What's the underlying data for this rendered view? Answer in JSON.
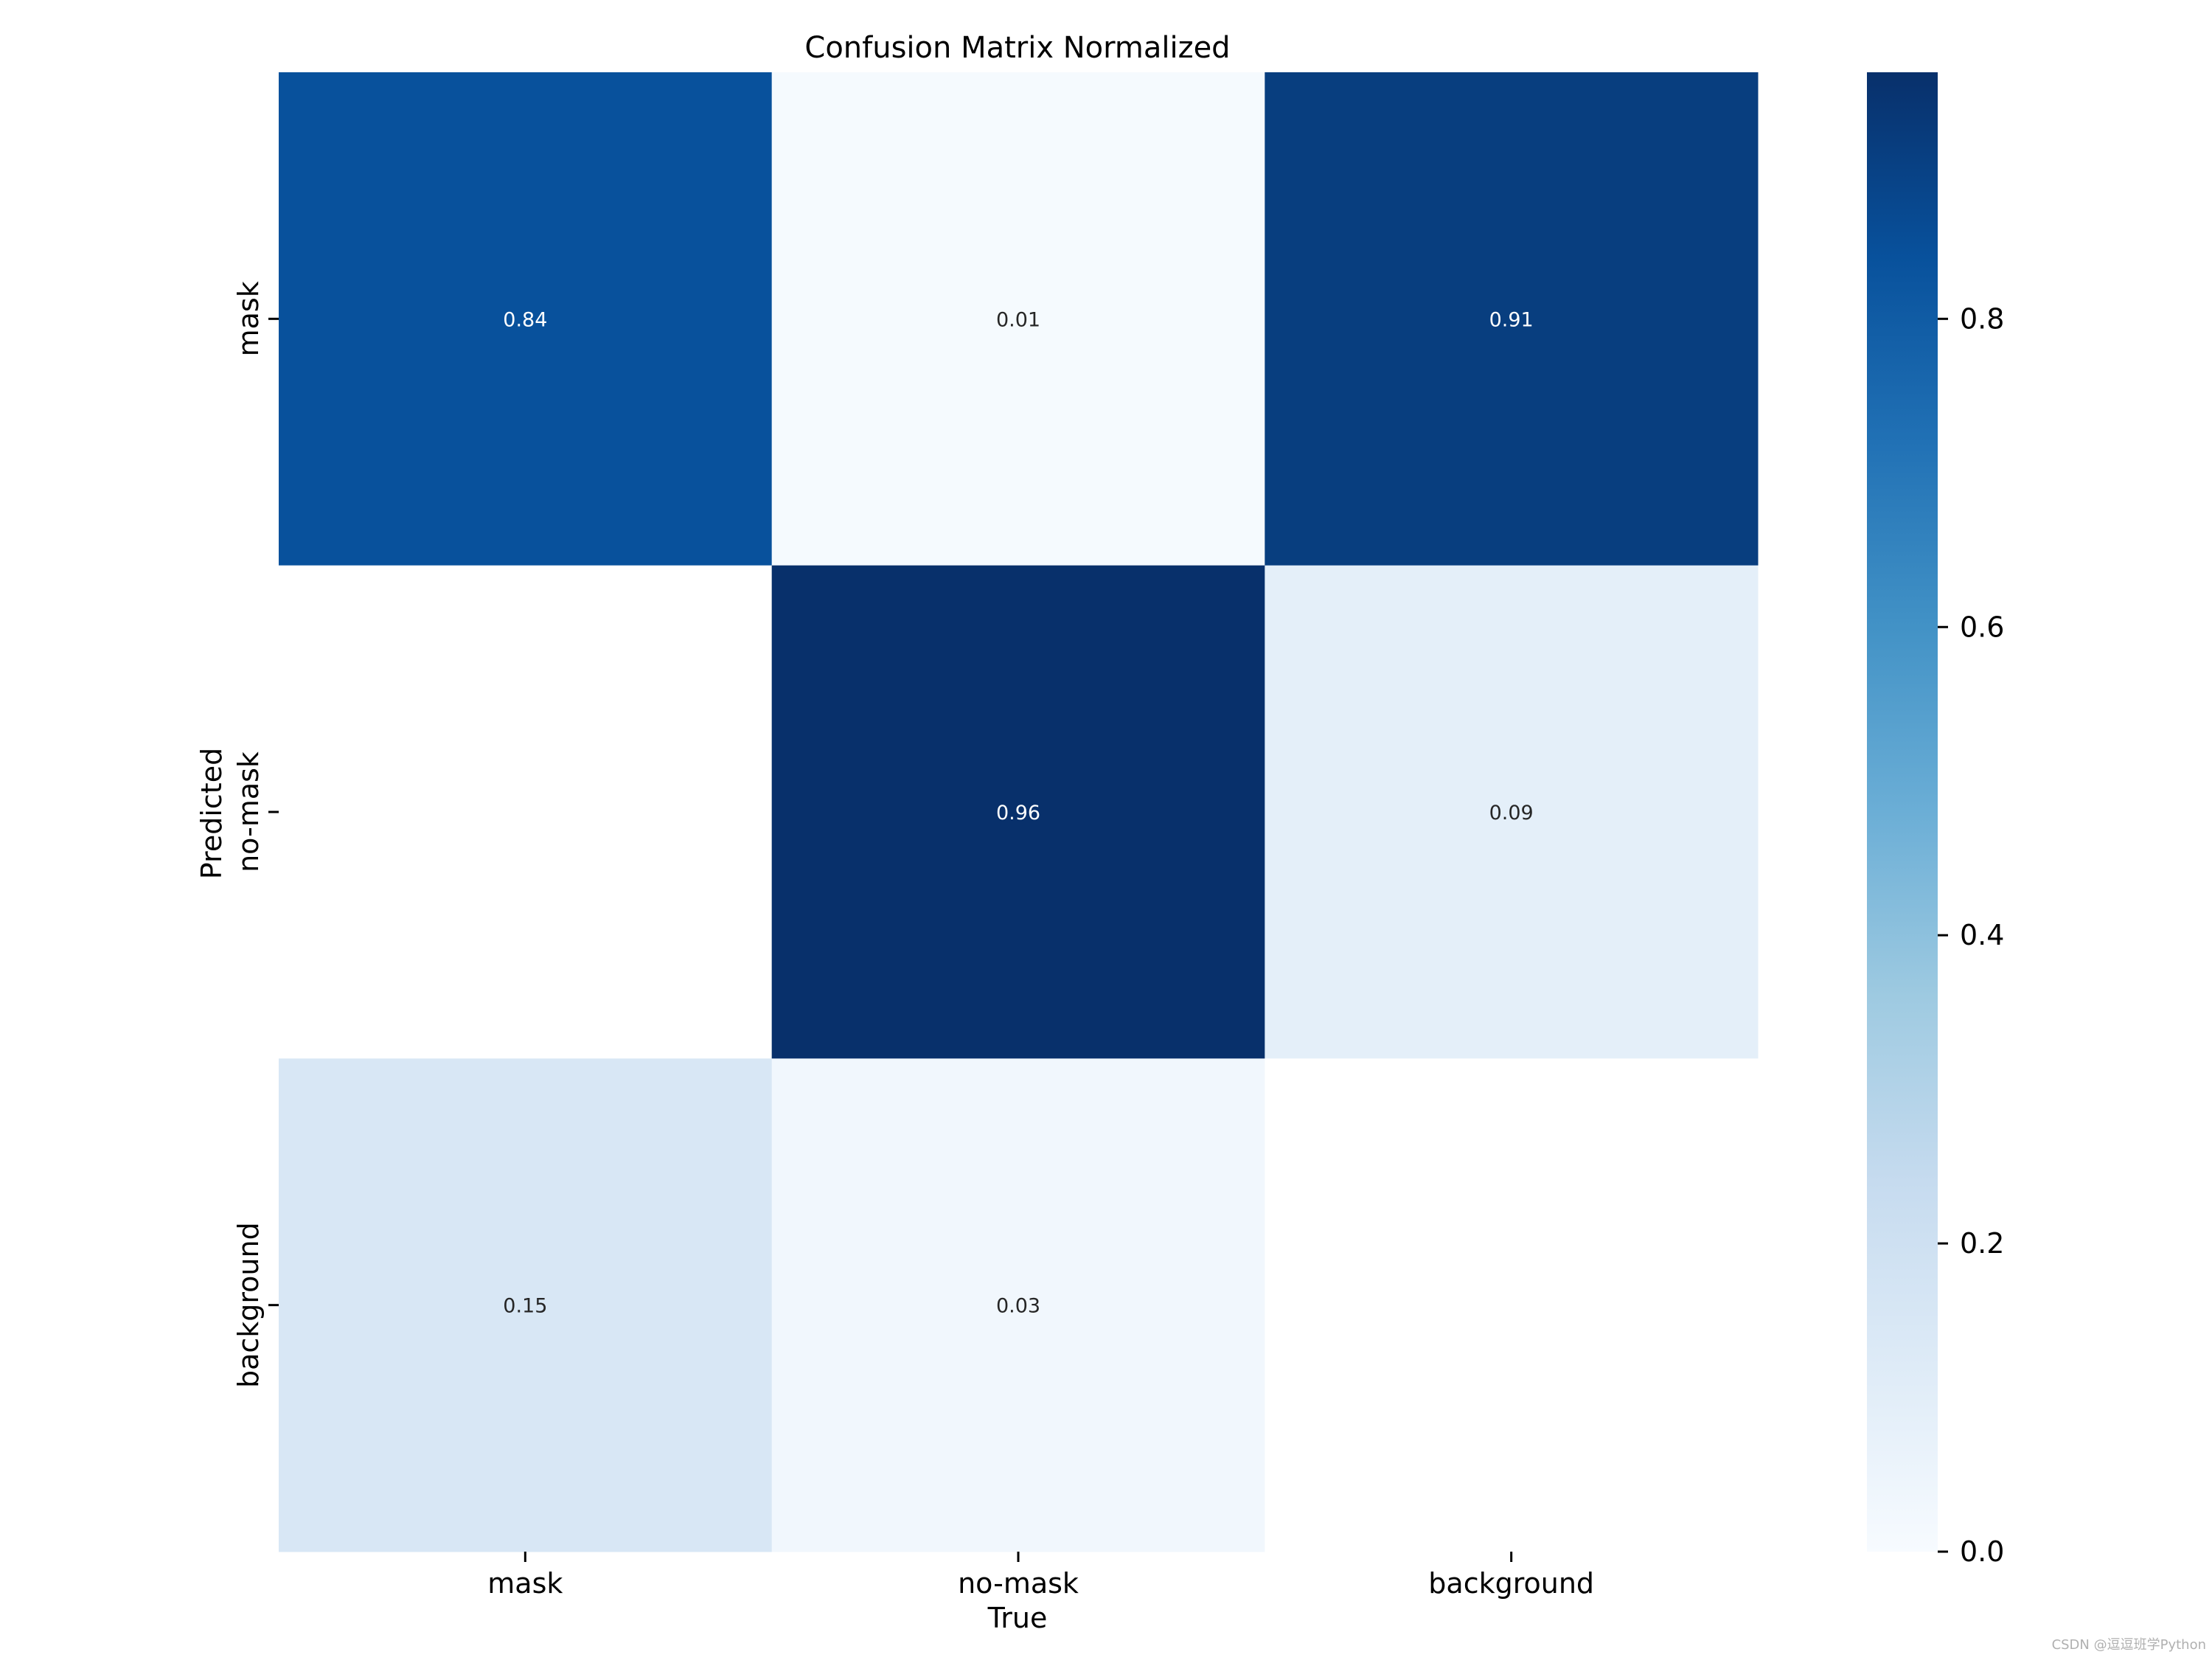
{
  "chart_data": {
    "type": "heatmap",
    "title": "Confusion Matrix Normalized",
    "xlabel": "True",
    "ylabel": "Predicted",
    "x_categories": [
      "mask",
      "no-mask",
      "background"
    ],
    "y_categories": [
      "mask",
      "no-mask",
      "background"
    ],
    "values": [
      [
        0.84,
        0.01,
        0.91
      ],
      [
        null,
        0.96,
        0.09
      ],
      [
        0.15,
        0.03,
        null
      ]
    ],
    "value_labels": [
      [
        "0.84",
        "0.01",
        "0.91"
      ],
      [
        "",
        "0.96",
        "0.09"
      ],
      [
        "0.15",
        "0.03",
        ""
      ]
    ],
    "colormap": "Blues",
    "colorbar": {
      "range": [
        0.0,
        0.96
      ],
      "ticks": [
        0.0,
        0.2,
        0.4,
        0.6,
        0.8
      ],
      "tick_labels": [
        "0.0",
        "0.2",
        "0.4",
        "0.6",
        "0.8"
      ]
    },
    "cell_text_dark": "#262626",
    "cell_text_light": "#ffffff",
    "low_color": "#f7fbff",
    "high_color": "#08306b"
  },
  "watermark": "CSDN @逗逗班学Python"
}
